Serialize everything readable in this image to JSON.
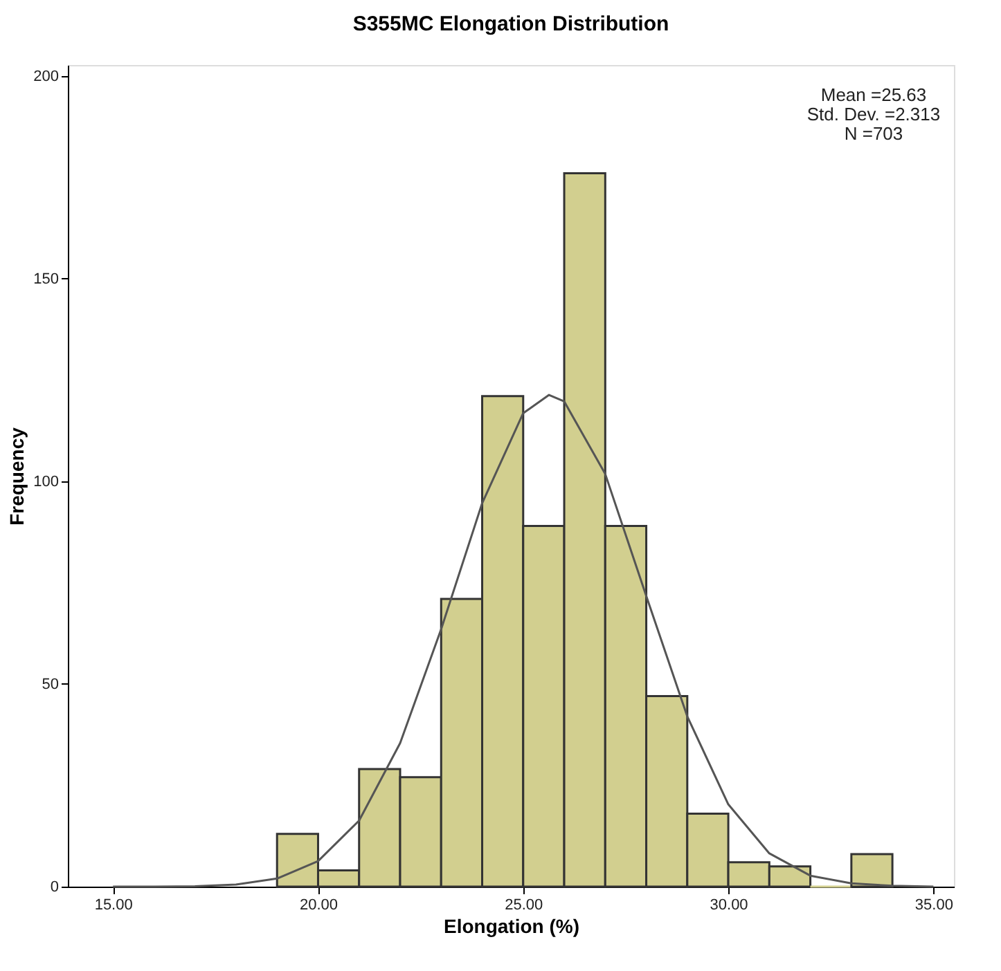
{
  "chart_data": {
    "type": "histogram",
    "title": "S355MC Elongation Distribution",
    "xlabel": "Elongation (%)",
    "ylabel": "Frequency",
    "bins": [
      19,
      20,
      21,
      22,
      23,
      24,
      25,
      26,
      27,
      28,
      29,
      30,
      31,
      32,
      33,
      34
    ],
    "values": [
      13,
      4,
      29,
      27,
      71,
      121,
      89,
      176,
      89,
      47,
      18,
      6,
      5,
      0,
      8
    ],
    "color": "#d2cf8f",
    "series": [
      {
        "type": "line",
        "color": "#555555",
        "x": [
          15,
          16,
          17,
          18,
          19,
          20,
          21,
          22,
          23,
          24,
          25,
          25.63,
          26,
          27,
          28,
          29,
          30,
          31,
          32,
          33,
          34,
          35
        ],
        "values": [
          0,
          0,
          0.1,
          0.5,
          2,
          6.3,
          16.3,
          35.4,
          63.5,
          94.6,
          116.8,
          121.3,
          119.7,
          101.8,
          71.7,
          42,
          20.3,
          8.2,
          2.7,
          0.8,
          0.2,
          0
        ]
      }
    ],
    "xlim": [
      13.9,
      35.5
    ],
    "xticks": [
      {
        "value": 15,
        "label": "15.00"
      },
      {
        "value": 20,
        "label": "20.00"
      },
      {
        "value": 25,
        "label": "25.00"
      },
      {
        "value": 30,
        "label": "30.00"
      },
      {
        "value": 35,
        "label": "35.00"
      }
    ],
    "ylim": [
      0,
      202.7
    ],
    "yticks": [
      0,
      50,
      100,
      150,
      200
    ],
    "grid": false,
    "annotations": [
      "Mean =25.63",
      "Std. Dev. =2.313",
      "N =703"
    ]
  }
}
